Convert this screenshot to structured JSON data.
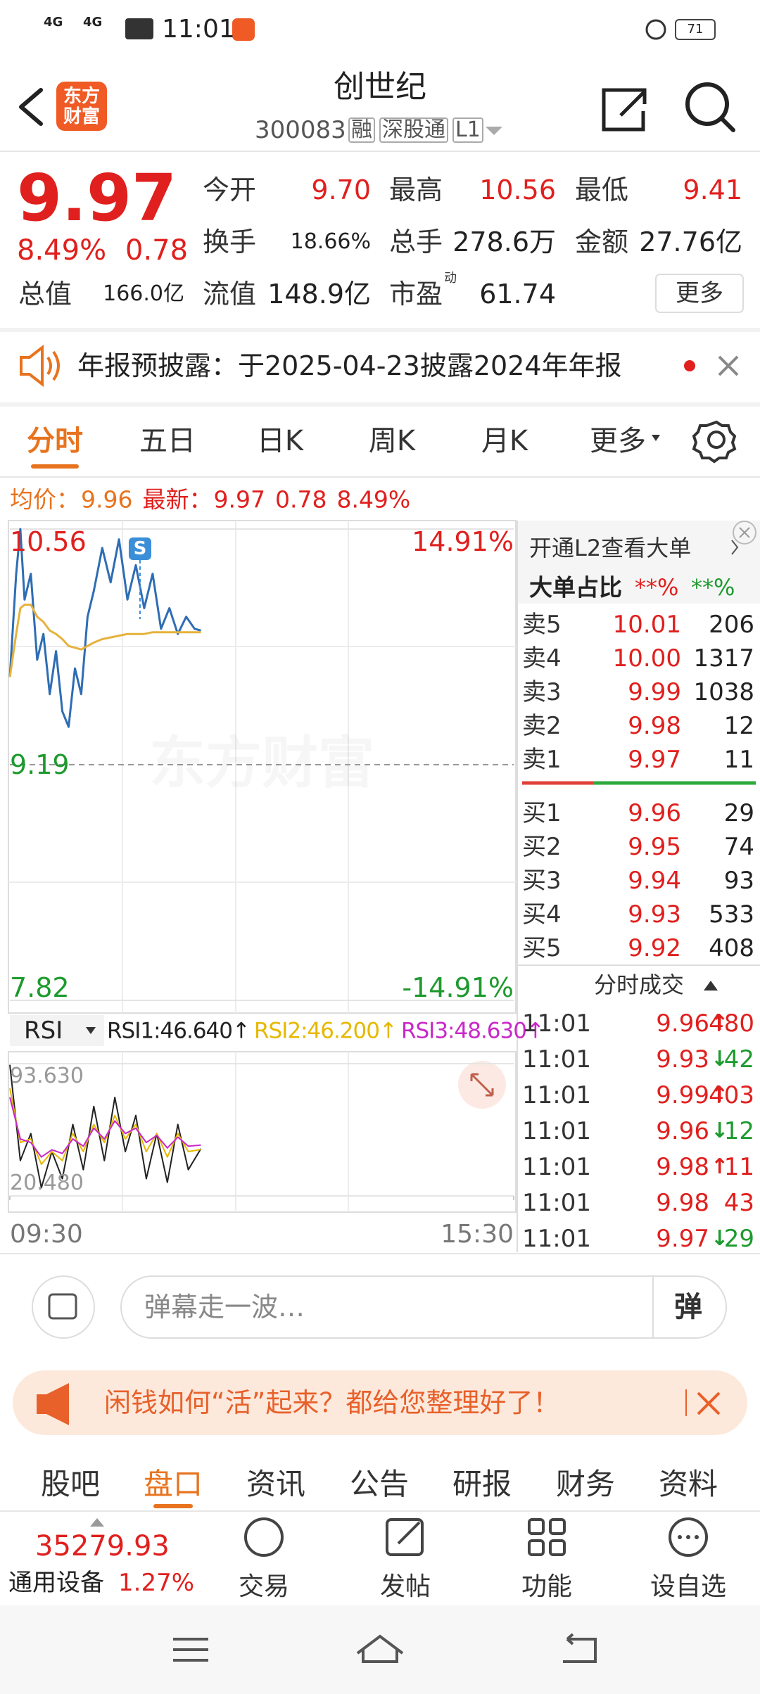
{
  "status_bar": {
    "time": "11:01",
    "signals": [
      "4G",
      "4G"
    ],
    "battery": "71"
  },
  "header": {
    "logo": [
      "东方",
      "财富"
    ],
    "title": "创世纪",
    "code": "300083",
    "tags": [
      "融",
      "深股通",
      "L1"
    ]
  },
  "quote": {
    "price": "9.97",
    "change_percent": "8.49%",
    "change": "0.78",
    "fields": [
      {
        "label": "今开",
        "value": "9.70"
      },
      {
        "label": "最高",
        "value": "10.56"
      },
      {
        "label": "最低",
        "value": "9.41"
      },
      {
        "label": "换手",
        "value": "18.66%"
      },
      {
        "label": "总手",
        "value": "278.6万"
      },
      {
        "label": "金额",
        "value": "27.76亿"
      },
      {
        "label": "总值",
        "value": "166.0亿"
      },
      {
        "label": "流值",
        "value": "148.9亿"
      },
      {
        "label": "市盈",
        "superscript": "动",
        "value": "61.74"
      }
    ],
    "more": "更多"
  },
  "notice": {
    "text": "年报预披露：于2025-04-23披露2024年年报"
  },
  "chart_tabs": {
    "items": [
      "分时",
      "五日",
      "日K",
      "周K",
      "月K",
      "更多"
    ],
    "active": 0
  },
  "summary": {
    "avg_label": "均价：",
    "avg": "9.96",
    "latest_label": "最新：",
    "latest": "9.97",
    "change": "0.78",
    "change_percent": "8.49%"
  },
  "chart_data": [
    {
      "type": "line",
      "watermark": "东方财富",
      "x": [
        0,
        3,
        5,
        7,
        10,
        13,
        16,
        19,
        22,
        25,
        28,
        31,
        34,
        37,
        40,
        44,
        48,
        52,
        56,
        60,
        64,
        68,
        72,
        76,
        80,
        84,
        88,
        91
      ],
      "xlim": [
        0,
        240
      ],
      "ylim": [
        7.82,
        10.56
      ],
      "yticks": [
        10.56,
        9.19,
        7.82
      ],
      "y2lim": [
        -14.91,
        14.91
      ],
      "y2ticks": [
        {
          "value": 14.91,
          "label": "14.91%"
        },
        {
          "value": -14.91,
          "label": "-14.91%"
        }
      ],
      "series": [
        {
          "color": "#2e6db4",
          "values": [
            9.7,
            10.3,
            10.56,
            10.15,
            10.3,
            9.8,
            9.95,
            9.6,
            9.85,
            9.5,
            9.41,
            9.75,
            9.6,
            10.05,
            10.2,
            10.45,
            10.25,
            10.5,
            10.15,
            10.35,
            10.1,
            10.3,
            9.98,
            10.1,
            9.95,
            10.05,
            9.98,
            9.97
          ]
        },
        {
          "color": "#e6b23c",
          "values": [
            9.7,
            9.95,
            10.1,
            10.12,
            10.12,
            10.05,
            10.02,
            9.97,
            9.95,
            9.92,
            9.88,
            9.87,
            9.86,
            9.88,
            9.9,
            9.92,
            9.93,
            9.94,
            9.95,
            9.95,
            9.95,
            9.96,
            9.96,
            9.96,
            9.96,
            9.96,
            9.96,
            9.96
          ]
        }
      ],
      "annotations": [
        {
          "text": "S",
          "x": 62
        }
      ]
    },
    {
      "type": "line",
      "selector": "RSI",
      "x": [
        0,
        5,
        10,
        15,
        20,
        25,
        30,
        35,
        40,
        45,
        50,
        55,
        60,
        65,
        70,
        75,
        80,
        85,
        91
      ],
      "xlim": [
        0,
        240
      ],
      "xticks": [
        {
          "value": 0,
          "label": "09:30"
        },
        {
          "value": 240,
          "label": "15:30"
        }
      ],
      "ylim": [
        20.48,
        93.63
      ],
      "yticks": [
        {
          "value": 93.63,
          "label": "93.630"
        },
        {
          "value": 20.48,
          "label": "20.480"
        }
      ],
      "series": [
        {
          "name": "RSI1:46.640↑",
          "color": "#222222",
          "values": [
            93.0,
            40,
            55,
            25,
            45,
            30,
            60,
            35,
            70,
            40,
            75,
            45,
            65,
            30,
            55,
            28,
            60,
            35,
            46.64
          ]
        },
        {
          "name": "RSI2:46.200↑",
          "color": "#e6b800",
          "values": [
            80,
            50,
            52,
            38,
            45,
            40,
            55,
            45,
            60,
            50,
            65,
            52,
            60,
            45,
            55,
            42,
            55,
            45,
            46.2
          ]
        },
        {
          "name": "RSI3:48.630↑",
          "color": "#c828c8",
          "values": [
            75,
            52,
            50,
            42,
            46,
            44,
            52,
            48,
            58,
            52,
            62,
            55,
            58,
            50,
            54,
            47,
            53,
            48,
            48.63
          ]
        }
      ]
    }
  ],
  "order_panel": {
    "l2_link": "开通L2查看大单",
    "big_order_label": "大单占比",
    "big_order_buy": "**%",
    "big_order_sell": "**%",
    "asks": [
      {
        "label": "卖5",
        "price": "10.01",
        "volume": "206"
      },
      {
        "label": "卖4",
        "price": "10.00",
        "volume": "1317"
      },
      {
        "label": "卖3",
        "price": "9.99",
        "volume": "1038"
      },
      {
        "label": "卖2",
        "price": "9.98",
        "volume": "12"
      },
      {
        "label": "卖1",
        "price": "9.97",
        "volume": "11"
      }
    ],
    "bids": [
      {
        "label": "买1",
        "price": "9.96",
        "volume": "29"
      },
      {
        "label": "买2",
        "price": "9.95",
        "volume": "74"
      },
      {
        "label": "买3",
        "price": "9.94",
        "volume": "93"
      },
      {
        "label": "买4",
        "price": "9.93",
        "volume": "533"
      },
      {
        "label": "买5",
        "price": "9.92",
        "volume": "408"
      }
    ],
    "trades_title": "分时成交",
    "trades": [
      {
        "time": "11:01",
        "price": "9.96",
        "arrow": "↑",
        "volume": "480"
      },
      {
        "time": "11:01",
        "price": "9.93",
        "arrow": "↓",
        "volume": "42"
      },
      {
        "time": "11:01",
        "price": "9.99",
        "arrow": "↑",
        "volume": "403"
      },
      {
        "time": "11:01",
        "price": "9.96",
        "arrow": "↓",
        "volume": "12"
      },
      {
        "time": "11:01",
        "price": "9.98",
        "arrow": "↑",
        "volume": "11"
      },
      {
        "time": "11:01",
        "price": "9.98",
        "volume": "43"
      },
      {
        "time": "11:01",
        "price": "9.97",
        "arrow": "↓",
        "volume": "29"
      }
    ]
  },
  "comment_bar": {
    "placeholder": "弹幕走一波…",
    "button": "弹"
  },
  "banner": {
    "text": "闲钱如何“活”起来？都给您整理好了！"
  },
  "section_tabs": {
    "items": [
      "股吧",
      "盘口",
      "资讯",
      "公告",
      "研报",
      "财务",
      "资料"
    ],
    "active": 1
  },
  "bottom_bar": {
    "index_value": "35279.93",
    "index_name": "通用设备",
    "index_change": "1.27%",
    "actions": [
      "交易",
      "发帖",
      "功能",
      "设自选"
    ]
  }
}
